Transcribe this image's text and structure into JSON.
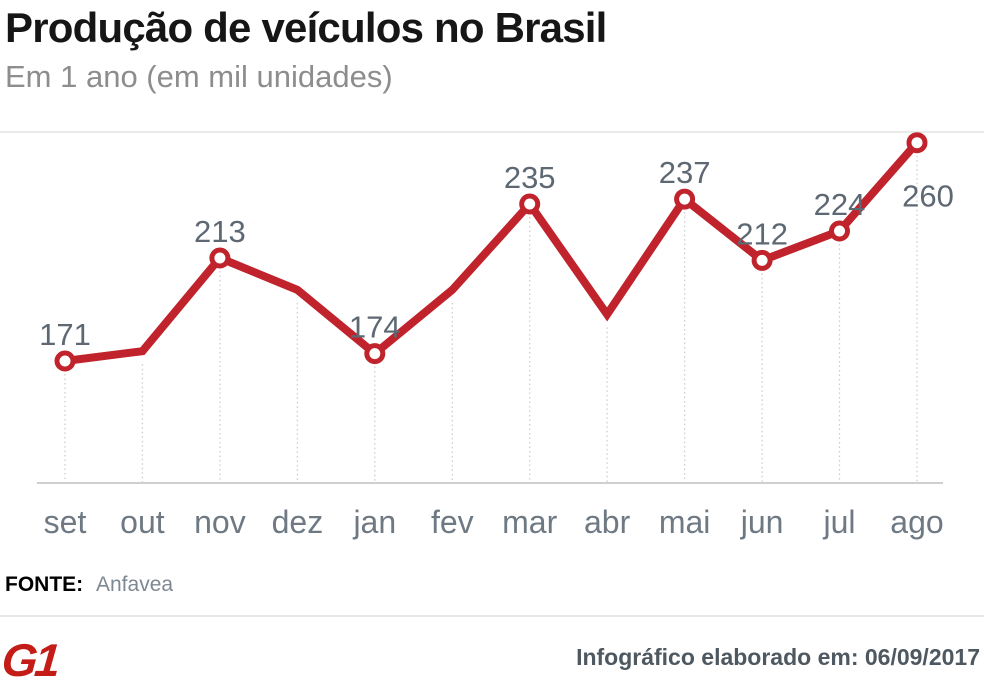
{
  "header": {
    "title": "Produção de veículos no Brasil",
    "subtitle": "Em 1 ano (em mil unidades)"
  },
  "chart_data": {
    "type": "line",
    "title": "Produção de veículos no Brasil",
    "subtitle": "Em 1 ano (em mil unidades)",
    "unit": "mil unidades",
    "y_axis_visible": false,
    "ylim": [
      121,
      265
    ],
    "grid": "dotted vertical drop lines from each point to baseline",
    "legend": null,
    "categories": [
      "set",
      "out",
      "nov",
      "dez",
      "jan",
      "fev",
      "mar",
      "abr",
      "mai",
      "jun",
      "jul",
      "ago"
    ],
    "values": [
      171,
      175,
      213,
      200,
      174,
      200,
      235,
      190,
      237,
      212,
      224,
      260
    ],
    "points": [
      {
        "month": "set",
        "value": 171,
        "label": "171"
      },
      {
        "month": "out",
        "value": 175,
        "label": null,
        "estimated": true
      },
      {
        "month": "nov",
        "value": 213,
        "label": "213"
      },
      {
        "month": "dez",
        "value": 200,
        "label": null,
        "estimated": true
      },
      {
        "month": "jan",
        "value": 174,
        "label": "174"
      },
      {
        "month": "fev",
        "value": 200,
        "label": null,
        "estimated": true
      },
      {
        "month": "mar",
        "value": 235,
        "label": "235"
      },
      {
        "month": "abr",
        "value": 190,
        "label": null,
        "estimated": true
      },
      {
        "month": "mai",
        "value": 237,
        "label": "237"
      },
      {
        "month": "jun",
        "value": 212,
        "label": "212"
      },
      {
        "month": "jul",
        "value": 224,
        "label": "224"
      },
      {
        "month": "ago",
        "value": 260,
        "label": "260",
        "label_position": "below-right"
      }
    ],
    "line_color": "#c0232b",
    "marker_fill": "#ffffff",
    "value_label_color": "#5d6873",
    "month_label_color": "#6e7984",
    "grid_color": "#c9cdd1",
    "axis_color": "#cfcfcf",
    "top_rule_color": "#eaeaea"
  },
  "footer": {
    "source_label": "FONTE:",
    "source_value": "Anfavea",
    "logo": "G1",
    "logo_color": "#c41d18",
    "credit": "Infográfico elaborado em: 06/09/2017"
  },
  "colors": {
    "title": "#161616",
    "subtitle": "#8d8d8d",
    "credit": "#4e5861",
    "source_value": "#7d8893",
    "footer_divider": "#e6e6e6",
    "background": "#ffffff"
  }
}
